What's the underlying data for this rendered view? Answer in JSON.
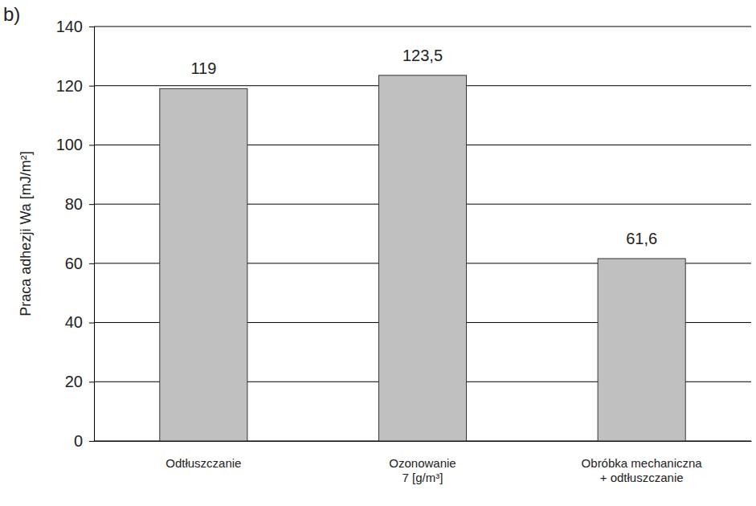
{
  "chart_data": {
    "type": "bar",
    "title": "b)",
    "y_label": "Praca adhezji Wa [mJ/m²]",
    "categories": [
      "Odtłuszczanie",
      "Ozonowanie\n7 [g/m³]",
      "Obróbka mechaniczna\n+ odtłuszczanie"
    ],
    "values": [
      119,
      123.5,
      61.6
    ],
    "value_labels": [
      "119",
      "123,5",
      "61,6"
    ],
    "data_labels": true,
    "color": "#c0c0c0",
    "ylim": [
      0,
      140
    ],
    "yticks": [
      0,
      20,
      40,
      60,
      80,
      100,
      120,
      140
    ],
    "grid": true
  }
}
